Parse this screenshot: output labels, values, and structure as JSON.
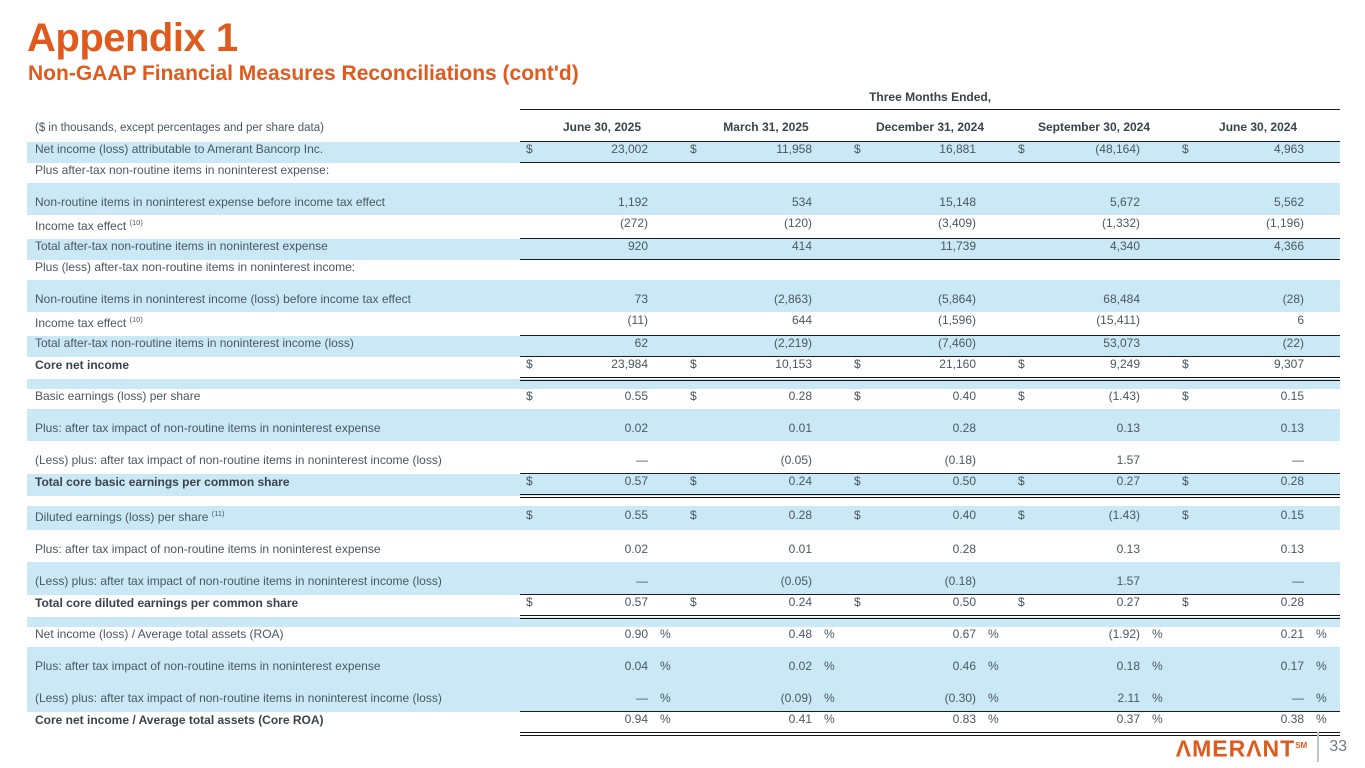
{
  "slide": {
    "title": "Appendix 1",
    "subtitle": "Non-GAAP Financial Measures Reconciliations (cont'd)"
  },
  "table": {
    "super_header": "Three Months Ended,",
    "units_note": "($ in thousands, except percentages and per share data)",
    "periods": [
      "June 30, 2025",
      "March 31, 2025",
      "December 31, 2024",
      "September 30, 2024",
      "June 30, 2024"
    ],
    "dollar_sign": "$",
    "percent_sign": "%",
    "rows": [
      {
        "name": "row-net-income",
        "label": "Net income (loss) attributable to Amerant Bancorp Inc.",
        "bg": "blue",
        "unit": "dollar",
        "border": "single",
        "values": [
          "23,002",
          "11,958",
          "16,881",
          "(48,164)",
          "4,963"
        ]
      },
      {
        "name": "row-plus-expense-heading",
        "label": "Plus after-tax non-routine items in noninterest expense:",
        "bg": "white",
        "unit": "none",
        "border": "none",
        "values": null
      },
      {
        "name": "row-nonroutine-expense",
        "label": "Non-routine items in noninterest expense before income tax effect",
        "bg": "blue",
        "tall": true,
        "unit": "none",
        "border": "none",
        "values": [
          "1,192",
          "534",
          "15,148",
          "5,672",
          "5,562"
        ]
      },
      {
        "name": "row-income-tax-effect-expense",
        "label": "Income tax effect",
        "sup": "(10)",
        "bg": "white",
        "unit": "none",
        "border": "single",
        "values": [
          "(272)",
          "(120)",
          "(3,409)",
          "(1,332)",
          "(1,196)"
        ]
      },
      {
        "name": "row-total-after-tax-expense",
        "label": "Total after-tax non-routine items in noninterest expense",
        "bg": "blue",
        "unit": "none",
        "border": "single",
        "values": [
          "920",
          "414",
          "11,739",
          "4,340",
          "4,366"
        ]
      },
      {
        "name": "row-plus-income-heading",
        "label": "Plus (less) after-tax non-routine items in noninterest income:",
        "bg": "white",
        "unit": "none",
        "border": "none",
        "values": null
      },
      {
        "name": "row-nonroutine-income",
        "label": "Non-routine items in noninterest income (loss) before income tax effect",
        "bg": "blue",
        "tall": true,
        "unit": "none",
        "border": "none",
        "values": [
          "73",
          "(2,863)",
          "(5,864)",
          "68,484",
          "(28)"
        ]
      },
      {
        "name": "row-income-tax-effect-income",
        "label": "Income tax effect",
        "sup": "(10)",
        "bg": "white",
        "unit": "none",
        "border": "single",
        "values": [
          "(11)",
          "644",
          "(1,596)",
          "(15,411)",
          "6"
        ]
      },
      {
        "name": "row-total-after-tax-income",
        "label": "Total after-tax non-routine items in noninterest income (loss)",
        "bg": "blue",
        "unit": "none",
        "border": "single",
        "values": [
          "62",
          "(2,219)",
          "(7,460)",
          "53,073",
          "(22)"
        ]
      },
      {
        "name": "row-core-net-income",
        "label": "Core net income",
        "bg": "white",
        "bold": true,
        "unit": "dollar",
        "border": "double",
        "values": [
          "23,984",
          "10,153",
          "21,160",
          "9,249",
          "9,307"
        ]
      },
      {
        "spacer": true,
        "bg": "blue",
        "h": 8
      },
      {
        "name": "row-basic-eps",
        "label": "Basic earnings (loss) per share",
        "bg": "white",
        "unit": "dollar",
        "border": "none",
        "values": [
          "0.55",
          "0.28",
          "0.40",
          "(1.43)",
          "0.15"
        ]
      },
      {
        "name": "row-plus-basic",
        "label": "Plus: after tax impact of non-routine items in noninterest expense",
        "bg": "blue",
        "tall": true,
        "unit": "none",
        "border": "none",
        "values": [
          "0.02",
          "0.01",
          "0.28",
          "0.13",
          "0.13"
        ]
      },
      {
        "name": "row-less-basic",
        "label": "(Less) plus: after tax impact of non-routine items in noninterest income (loss)",
        "bg": "white",
        "tall": true,
        "unit": "none",
        "border": "single",
        "values": [
          "—",
          "(0.05)",
          "(0.18)",
          "1.57",
          "—"
        ]
      },
      {
        "name": "row-total-core-basic",
        "label": "Total core basic earnings per common share",
        "bg": "blue",
        "bold": true,
        "unit": "dollar",
        "border": "double",
        "values": [
          "0.57",
          "0.24",
          "0.50",
          "0.27",
          "0.28"
        ]
      },
      {
        "spacer": true,
        "bg": "white",
        "h": 8
      },
      {
        "name": "row-diluted-eps",
        "label": "Diluted earnings (loss) per share",
        "sup": "(11)",
        "bg": "blue",
        "unit": "dollar",
        "border": "none",
        "values": [
          "0.55",
          "0.28",
          "0.40",
          "(1.43)",
          "0.15"
        ]
      },
      {
        "name": "row-plus-diluted",
        "label": "Plus: after tax impact of non-routine items in noninterest expense",
        "bg": "white",
        "tall": true,
        "unit": "none",
        "border": "none",
        "values": [
          "0.02",
          "0.01",
          "0.28",
          "0.13",
          "0.13"
        ]
      },
      {
        "name": "row-less-diluted",
        "label": "(Less) plus: after tax impact of non-routine items in noninterest income (loss)",
        "bg": "blue",
        "tall": true,
        "unit": "none",
        "border": "single",
        "values": [
          "—",
          "(0.05)",
          "(0.18)",
          "1.57",
          "—"
        ]
      },
      {
        "name": "row-total-core-diluted",
        "label": "Total core diluted earnings per common share",
        "bg": "white",
        "bold": true,
        "unit": "dollar",
        "border": "double",
        "values": [
          "0.57",
          "0.24",
          "0.50",
          "0.27",
          "0.28"
        ]
      },
      {
        "spacer": true,
        "bg": "blue",
        "h": 8
      },
      {
        "name": "row-roa",
        "label": "Net income (loss) / Average total assets (ROA)",
        "bg": "white",
        "unit": "pct",
        "border": "none",
        "values": [
          "0.90",
          "0.48",
          "0.67",
          "(1.92)",
          "0.21"
        ]
      },
      {
        "name": "row-plus-roa",
        "label": "Plus: after tax impact of non-routine items in noninterest expense",
        "bg": "blue",
        "tall": true,
        "unit": "pct",
        "border": "none",
        "values": [
          "0.04",
          "0.02",
          "0.46",
          "0.18",
          "0.17"
        ]
      },
      {
        "name": "row-less-roa",
        "label": "(Less) plus: after tax impact of non-routine items in noninterest income (loss)",
        "bg": "blue",
        "tall": true,
        "unit": "pct",
        "border": "single",
        "values": [
          "—",
          "(0.09)",
          "(0.30)",
          "2.11",
          "—"
        ]
      },
      {
        "name": "row-core-roa",
        "label": "Core net income / Average total assets (Core ROA)",
        "bg": "white",
        "bold": true,
        "unit": "pct",
        "border": "double",
        "values": [
          "0.94",
          "0.41",
          "0.83",
          "0.37",
          "0.38"
        ]
      }
    ]
  },
  "footer": {
    "logo_text": "ΛMERΛNT",
    "logo_service_mark": "SM",
    "page_number": "33"
  },
  "colors": {
    "accent_orange": "#E05A1E",
    "row_highlight_blue": "#CBE8F7",
    "text_gray": "#4A5761",
    "border_black": "#1c1c1c"
  }
}
